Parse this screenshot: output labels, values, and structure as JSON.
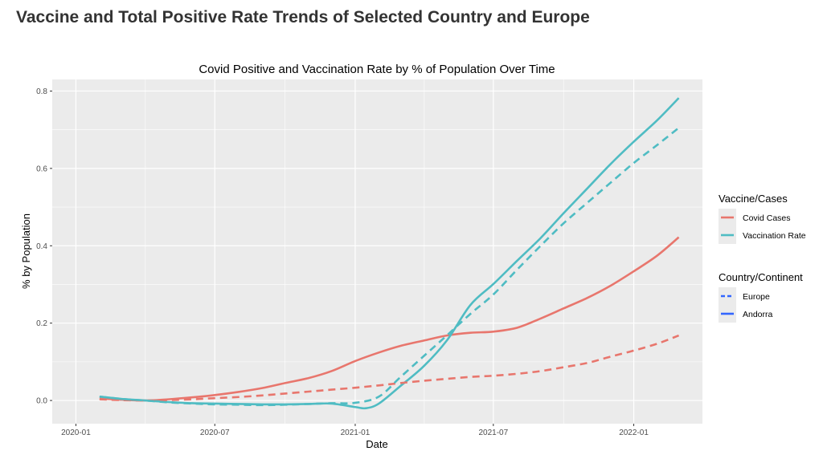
{
  "page": {
    "title": "Vaccine and Total Positive Rate Trends of Selected Country and Europe"
  },
  "chart_data": {
    "type": "line",
    "title": "Covid Positive and Vaccination Rate by % of Population Over Time",
    "xlabel": "Date",
    "ylabel": "% by Population",
    "xlim": [
      "2019-12-01",
      "2022-04-01"
    ],
    "ylim": [
      -0.06,
      0.83
    ],
    "x_ticks": [
      "2020-01",
      "2020-07",
      "2021-01",
      "2021-07",
      "2022-01"
    ],
    "y_ticks": [
      0.0,
      0.2,
      0.4,
      0.6,
      0.8
    ],
    "y_tick_labels": [
      "0.0",
      "0.2",
      "0.4",
      "0.6",
      "0.8"
    ],
    "grid": true,
    "legend_position": "right",
    "colors": {
      "covid_cases": "#E8766D",
      "vaccination_rate": "#4FBCC3",
      "panel_bg": "#EBEBEB",
      "grid": "#FFFFFF",
      "legend_key_bg": "#EBEBEB",
      "linetype_key": "#3366FF"
    },
    "legends": [
      {
        "title": "Vaccine/Cases",
        "items": [
          {
            "label": "Covid Cases",
            "color": "#E8766D",
            "linetype": "solid"
          },
          {
            "label": "Vaccination Rate",
            "color": "#4FBCC3",
            "linetype": "solid"
          }
        ]
      },
      {
        "title": "Country/Continent",
        "items": [
          {
            "label": "Europe",
            "color": "#3366FF",
            "linetype": "dashed"
          },
          {
            "label": "Andorra",
            "color": "#3366FF",
            "linetype": "solid"
          }
        ]
      }
    ],
    "series": [
      {
        "name": "Covid Cases",
        "group": "Andorra",
        "color": "#E8766D",
        "linetype": "solid",
        "x": [
          "2020-02-01",
          "2020-03-01",
          "2020-04-01",
          "2020-05-01",
          "2020-06-01",
          "2020-07-01",
          "2020-08-01",
          "2020-09-01",
          "2020-10-01",
          "2020-11-01",
          "2020-12-01",
          "2021-01-01",
          "2021-02-01",
          "2021-03-01",
          "2021-04-01",
          "2021-05-01",
          "2021-06-01",
          "2021-07-01",
          "2021-08-01",
          "2021-09-01",
          "2021-10-01",
          "2021-11-01",
          "2021-12-01",
          "2022-01-01",
          "2022-02-01",
          "2022-03-01"
        ],
        "y": [
          0.005,
          0.002,
          0.0,
          0.003,
          0.008,
          0.014,
          0.022,
          0.032,
          0.045,
          0.058,
          0.076,
          0.102,
          0.124,
          0.141,
          0.155,
          0.168,
          0.175,
          0.178,
          0.188,
          0.212,
          0.238,
          0.265,
          0.296,
          0.334,
          0.375,
          0.422
        ]
      },
      {
        "name": "Vaccination Rate",
        "group": "Andorra",
        "color": "#4FBCC3",
        "linetype": "solid",
        "x": [
          "2020-02-01",
          "2020-03-01",
          "2020-04-01",
          "2020-05-01",
          "2020-06-01",
          "2020-07-01",
          "2020-08-01",
          "2020-09-01",
          "2020-10-01",
          "2020-11-01",
          "2020-12-01",
          "2021-01-01",
          "2021-01-15",
          "2021-02-01",
          "2021-03-01",
          "2021-04-01",
          "2021-05-01",
          "2021-06-01",
          "2021-07-01",
          "2021-08-01",
          "2021-09-01",
          "2021-10-01",
          "2021-11-01",
          "2021-12-01",
          "2022-01-01",
          "2022-02-01",
          "2022-03-01"
        ],
        "y": [
          0.01,
          0.004,
          0.0,
          -0.004,
          -0.007,
          -0.008,
          -0.009,
          -0.01,
          -0.01,
          -0.009,
          -0.008,
          -0.017,
          -0.02,
          -0.008,
          0.037,
          0.089,
          0.155,
          0.247,
          0.301,
          0.361,
          0.42,
          0.484,
          0.548,
          0.61,
          0.669,
          0.725,
          0.782
        ]
      },
      {
        "name": "Covid Cases",
        "group": "Europe",
        "color": "#E8766D",
        "linetype": "dashed",
        "x": [
          "2020-02-01",
          "2020-03-01",
          "2020-04-01",
          "2020-05-01",
          "2020-06-01",
          "2020-07-01",
          "2020-08-01",
          "2020-09-01",
          "2020-10-01",
          "2020-11-01",
          "2020-12-01",
          "2021-01-01",
          "2021-02-01",
          "2021-03-01",
          "2021-04-01",
          "2021-05-01",
          "2021-06-01",
          "2021-07-01",
          "2021-08-01",
          "2021-09-01",
          "2021-10-01",
          "2021-11-01",
          "2021-12-01",
          "2022-01-01",
          "2022-02-01",
          "2022-03-01"
        ],
        "y": [
          0.003,
          0.001,
          0.0,
          0.001,
          0.003,
          0.006,
          0.009,
          0.013,
          0.018,
          0.023,
          0.028,
          0.033,
          0.039,
          0.045,
          0.051,
          0.056,
          0.061,
          0.064,
          0.069,
          0.076,
          0.086,
          0.097,
          0.113,
          0.129,
          0.147,
          0.168
        ]
      },
      {
        "name": "Vaccination Rate",
        "group": "Europe",
        "color": "#4FBCC3",
        "linetype": "dashed",
        "x": [
          "2020-02-01",
          "2020-03-01",
          "2020-04-01",
          "2020-05-01",
          "2020-06-01",
          "2020-07-01",
          "2020-08-01",
          "2020-09-01",
          "2020-10-01",
          "2020-11-01",
          "2020-12-01",
          "2021-01-01",
          "2021-02-01",
          "2021-03-01",
          "2021-04-01",
          "2021-05-01",
          "2021-06-01",
          "2021-07-01",
          "2021-08-01",
          "2021-09-01",
          "2021-10-01",
          "2021-11-01",
          "2021-12-01",
          "2022-01-01",
          "2022-02-01",
          "2022-03-01"
        ],
        "y": [
          0.01,
          0.004,
          0.0,
          -0.005,
          -0.008,
          -0.01,
          -0.011,
          -0.012,
          -0.011,
          -0.009,
          -0.007,
          -0.006,
          0.01,
          0.06,
          0.115,
          0.168,
          0.224,
          0.274,
          0.338,
          0.4,
          0.458,
          0.511,
          0.562,
          0.614,
          0.661,
          0.705
        ]
      }
    ]
  }
}
